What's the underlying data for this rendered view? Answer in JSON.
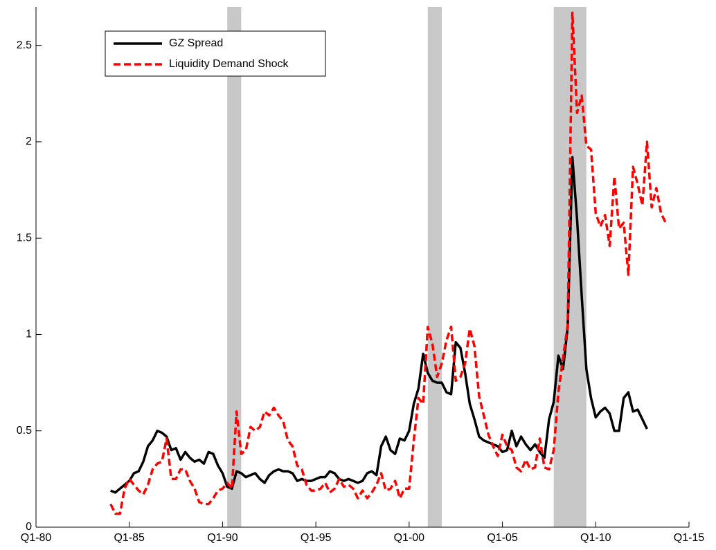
{
  "chart_data": {
    "type": "line",
    "xlim": [
      1980,
      2015
    ],
    "ylim": [
      0,
      2.7
    ],
    "xticks": [
      {
        "value": 1980,
        "label": "Q1-80"
      },
      {
        "value": 1985,
        "label": "Q1-85"
      },
      {
        "value": 1990,
        "label": "Q1-90"
      },
      {
        "value": 1995,
        "label": "Q1-95"
      },
      {
        "value": 2000,
        "label": "Q1-00"
      },
      {
        "value": 2005,
        "label": "Q1-05"
      },
      {
        "value": 2010,
        "label": "Q1-10"
      },
      {
        "value": 2015,
        "label": "Q1-15"
      }
    ],
    "yticks": [
      0,
      0.5,
      1,
      1.5,
      2,
      2.5
    ],
    "legend": "upper left",
    "recession_color": "#c8c8c8",
    "recessions": [
      [
        1990.25,
        1991.0
      ],
      [
        2001.0,
        2001.75
      ],
      [
        2007.75,
        2009.5
      ]
    ],
    "x": [
      1984,
      1984.25,
      1984.5,
      1984.75,
      1985,
      1985.25,
      1985.5,
      1985.75,
      1986,
      1986.25,
      1986.5,
      1986.75,
      1987,
      1987.25,
      1987.5,
      1987.75,
      1988,
      1988.25,
      1988.5,
      1988.75,
      1989,
      1989.25,
      1989.5,
      1989.75,
      1990,
      1990.25,
      1990.5,
      1990.75,
      1991,
      1991.25,
      1991.5,
      1991.75,
      1992,
      1992.25,
      1992.5,
      1992.75,
      1993,
      1993.25,
      1993.5,
      1993.75,
      1994,
      1994.25,
      1994.5,
      1994.75,
      1995,
      1995.25,
      1995.5,
      1995.75,
      1996,
      1996.25,
      1996.5,
      1996.75,
      1997,
      1997.25,
      1997.5,
      1997.75,
      1998,
      1998.25,
      1998.5,
      1998.75,
      1999,
      1999.25,
      1999.5,
      1999.75,
      2000,
      2000.25,
      2000.5,
      2000.75,
      2001,
      2001.25,
      2001.5,
      2001.75,
      2002,
      2002.25,
      2002.5,
      2002.75,
      2003,
      2003.25,
      2003.5,
      2003.75,
      2004,
      2004.25,
      2004.5,
      2004.75,
      2005,
      2005.25,
      2005.5,
      2005.75,
      2006,
      2006.25,
      2006.5,
      2006.75,
      2007,
      2007.25,
      2007.5,
      2007.75,
      2008,
      2008.25,
      2008.5,
      2008.75,
      2009,
      2009.25,
      2009.5,
      2009.75,
      2010,
      2010.25,
      2010.5,
      2010.75,
      2011,
      2011.25,
      2011.5,
      2011.75,
      2012,
      2012.25,
      2012.5,
      2012.75,
      2013,
      2013.25,
      2013.5,
      2013.75
    ],
    "series": [
      {
        "name": "GZ Spread",
        "color": "#000000",
        "dash": false,
        "values": [
          0.19,
          0.18,
          0.2,
          0.22,
          0.24,
          0.28,
          0.29,
          0.34,
          0.42,
          0.45,
          0.5,
          0.49,
          0.47,
          0.4,
          0.41,
          0.35,
          0.39,
          0.36,
          0.34,
          0.35,
          0.33,
          0.39,
          0.38,
          0.32,
          0.28,
          0.21,
          0.2,
          0.29,
          0.28,
          0.26,
          0.27,
          0.28,
          0.25,
          0.23,
          0.27,
          0.29,
          0.3,
          0.29,
          0.29,
          0.28,
          0.24,
          0.25,
          0.24,
          0.24,
          0.25,
          0.26,
          0.26,
          0.29,
          0.28,
          0.25,
          0.24,
          0.25,
          0.24,
          0.23,
          0.24,
          0.28,
          0.29,
          0.27,
          0.42,
          0.47,
          0.4,
          0.38,
          0.46,
          0.45,
          0.5,
          0.64,
          0.72,
          0.9,
          0.8,
          0.76,
          0.75,
          0.75,
          0.7,
          0.69,
          0.96,
          0.93,
          0.8,
          0.64,
          0.56,
          0.47,
          0.45,
          0.44,
          0.43,
          0.42,
          0.39,
          0.4,
          0.5,
          0.42,
          0.47,
          0.43,
          0.4,
          0.43,
          0.39,
          0.36,
          0.56,
          0.65,
          0.89,
          0.82,
          1.04,
          1.92,
          1.6,
          1.2,
          0.82,
          0.67,
          0.57,
          0.6,
          0.62,
          0.59,
          0.5,
          0.5,
          0.67,
          0.7,
          0.6,
          0.61,
          0.56,
          0.51,
          null,
          null,
          null,
          null
        ]
      },
      {
        "name": "Liquidity Demand Shock",
        "color": "#ff0000",
        "dash": true,
        "values": [
          0.12,
          0.07,
          0.07,
          0.2,
          0.25,
          0.22,
          0.19,
          0.17,
          0.22,
          0.3,
          0.33,
          0.34,
          0.46,
          0.25,
          0.25,
          0.3,
          0.3,
          0.24,
          0.2,
          0.13,
          0.12,
          0.12,
          0.15,
          0.19,
          0.2,
          0.23,
          0.2,
          0.6,
          0.38,
          0.4,
          0.52,
          0.5,
          0.52,
          0.6,
          0.58,
          0.62,
          0.58,
          0.55,
          0.45,
          0.42,
          0.32,
          0.3,
          0.22,
          0.19,
          0.19,
          0.2,
          0.23,
          0.18,
          0.2,
          0.25,
          0.21,
          0.22,
          0.2,
          0.15,
          0.19,
          0.15,
          0.18,
          0.22,
          0.28,
          0.19,
          0.2,
          0.24,
          0.15,
          0.2,
          0.2,
          0.45,
          0.67,
          0.64,
          1.04,
          0.95,
          0.78,
          0.85,
          0.97,
          1.04,
          0.76,
          0.78,
          0.85,
          1.03,
          0.94,
          0.68,
          0.58,
          0.48,
          0.42,
          0.37,
          0.48,
          0.42,
          0.4,
          0.31,
          0.29,
          0.35,
          0.3,
          0.31,
          0.46,
          0.31,
          0.3,
          0.4,
          0.7,
          0.88,
          1.05,
          2.67,
          2.15,
          2.24,
          1.98,
          1.96,
          1.63,
          1.56,
          1.62,
          1.46,
          1.82,
          1.55,
          1.58,
          1.31,
          1.87,
          1.78,
          1.67,
          2.0,
          1.66,
          1.76,
          1.63,
          1.58
        ]
      }
    ]
  }
}
